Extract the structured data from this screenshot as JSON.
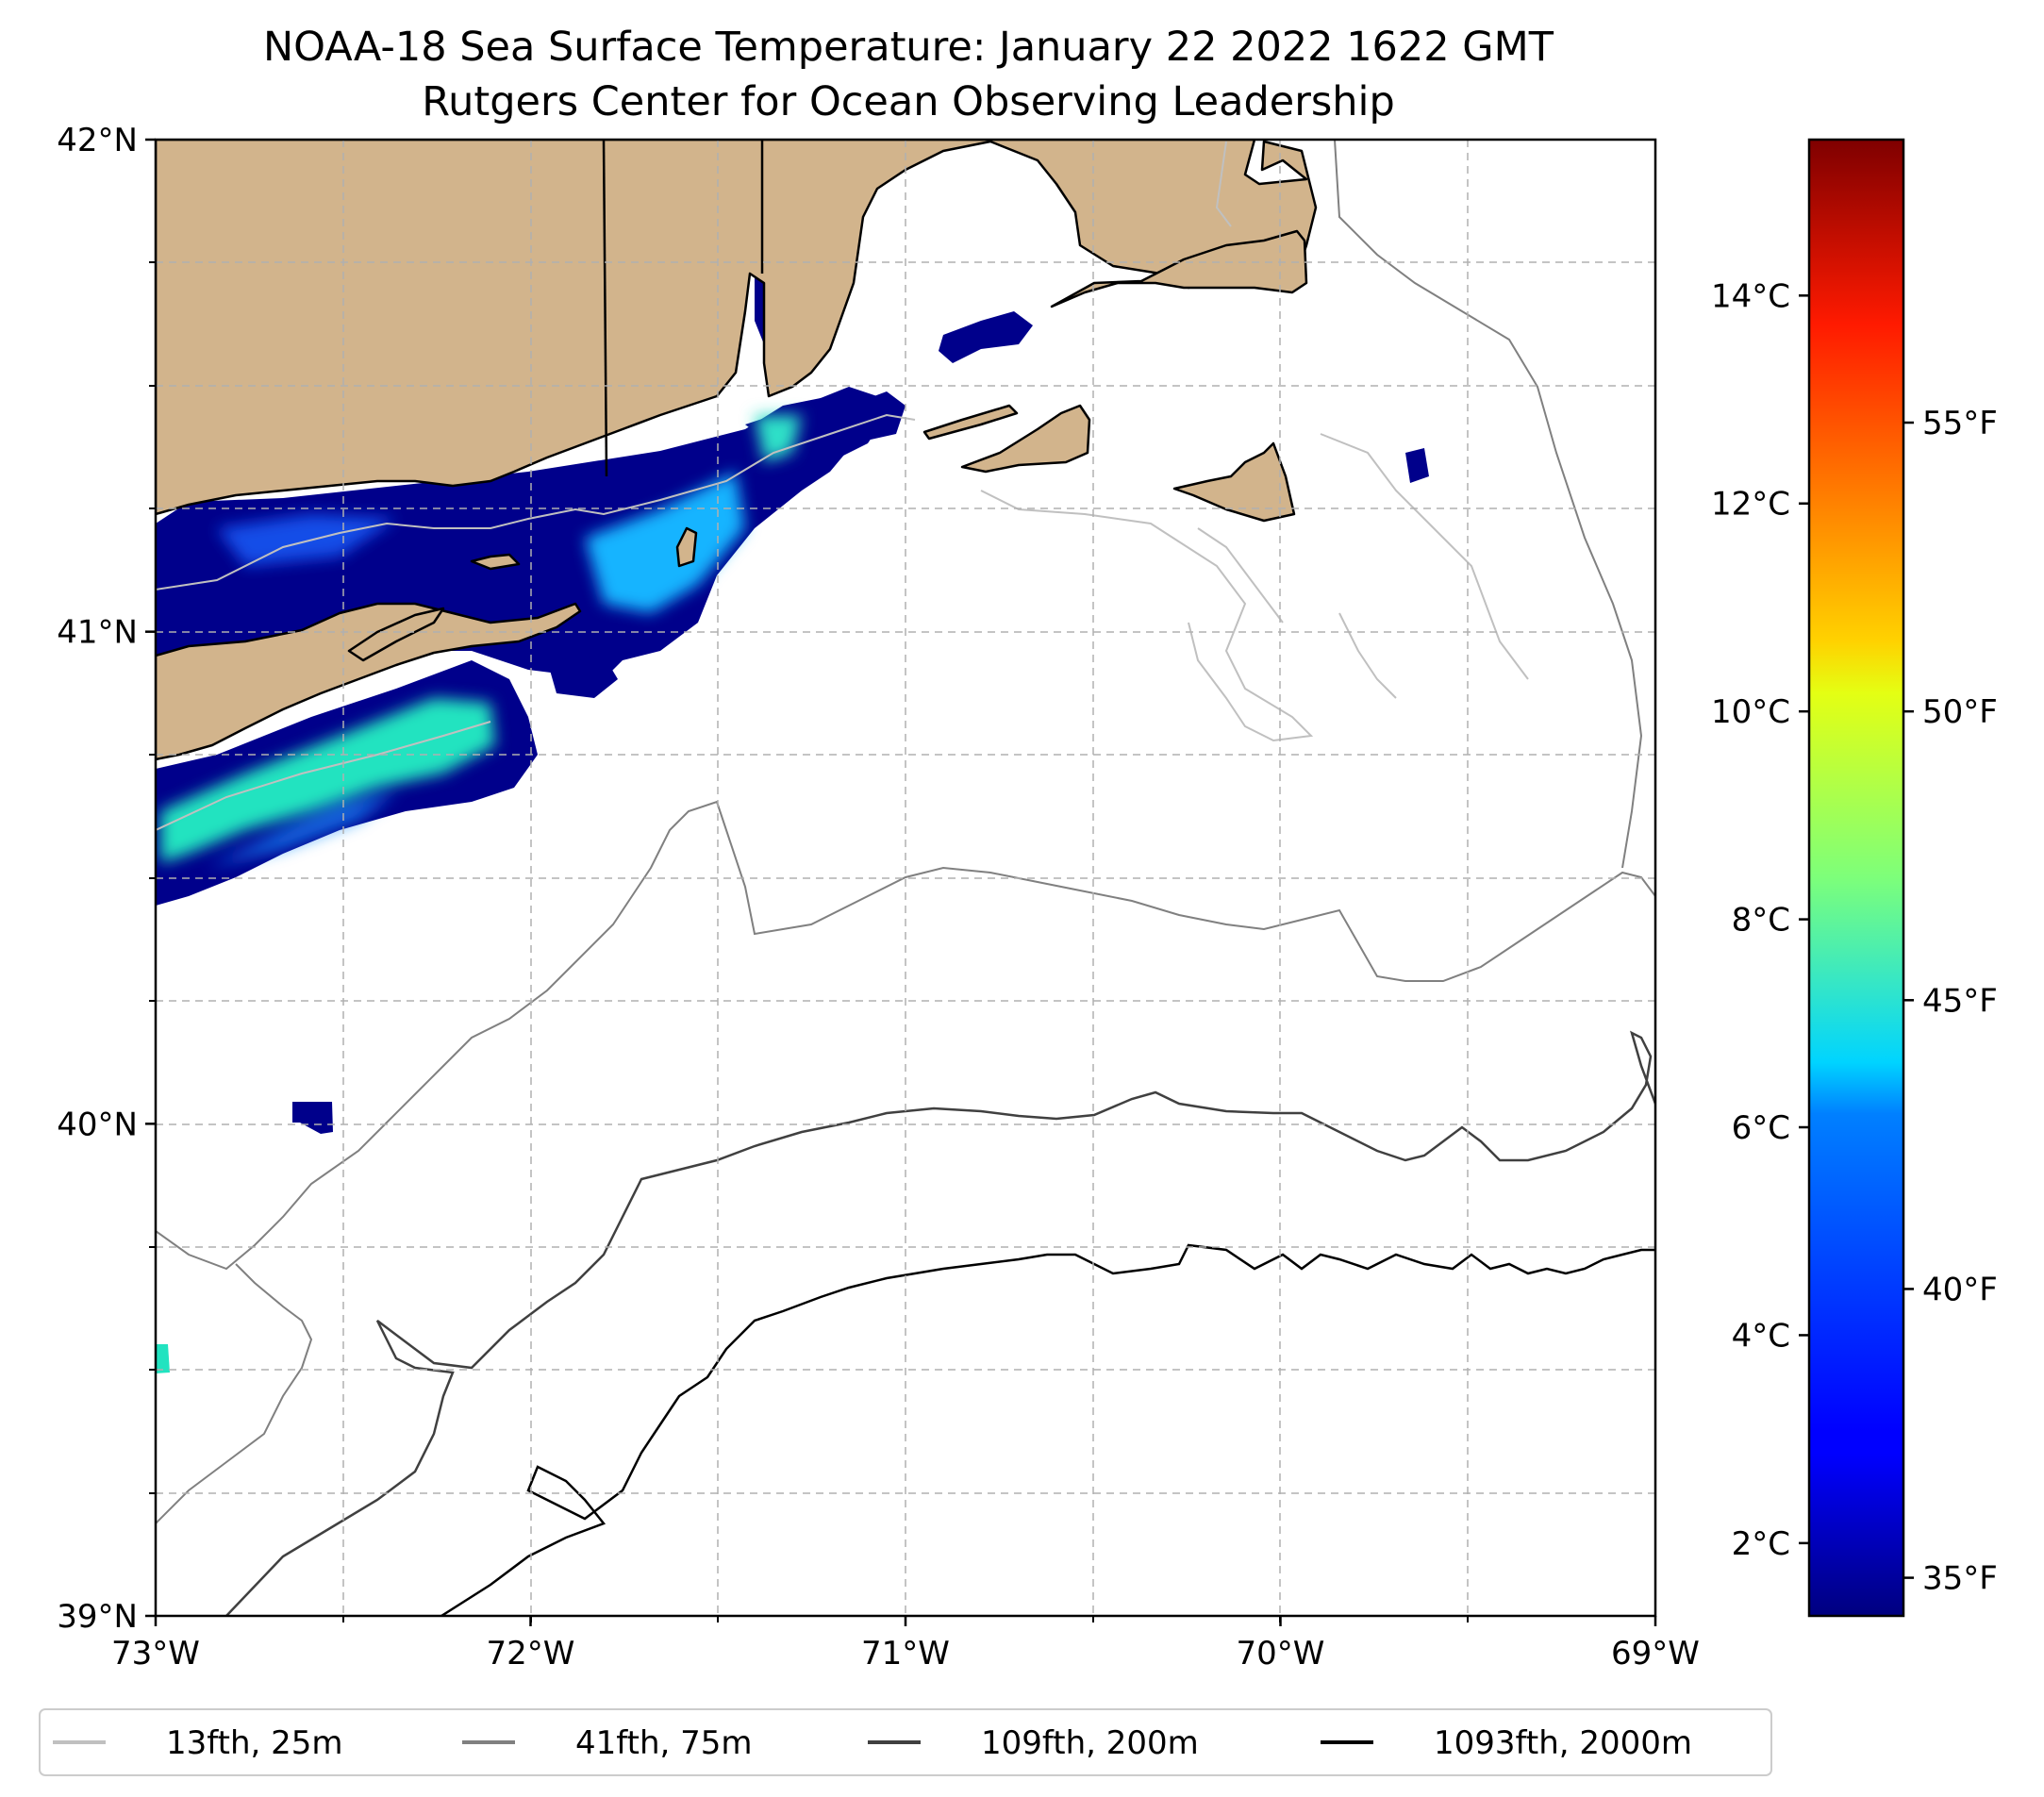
{
  "map": {
    "title": "NOAA-18 Sea Surface Temperature: January 22 2022 1622 GMT",
    "subtitle": "Rutgers Center for Ocean Observing Leadership",
    "extent": {
      "lon_min": -73,
      "lon_max": -69,
      "lat_min": 39,
      "lat_max": 42
    },
    "lat_ticks": [
      {
        "value": 42,
        "label": "42°N"
      },
      {
        "value": 41,
        "label": "41°N"
      },
      {
        "value": 40,
        "label": "40°N"
      },
      {
        "value": 39,
        "label": "39°N"
      }
    ],
    "lon_ticks": [
      {
        "value": -73,
        "label": "73°W"
      },
      {
        "value": -72,
        "label": "72°W"
      },
      {
        "value": -71,
        "label": "71°W"
      },
      {
        "value": -70,
        "label": "70°W"
      },
      {
        "value": -69,
        "label": "69°W"
      }
    ],
    "colors": {
      "land": "#d2b48c",
      "coast": "#000000",
      "grid": "#b0b0b0"
    }
  },
  "colorbar": {
    "colormap": "jet",
    "range_c": [
      1.3,
      15.5
    ],
    "celsius_ticks": [
      {
        "value": 2,
        "label": "2°C"
      },
      {
        "value": 4,
        "label": "4°C"
      },
      {
        "value": 6,
        "label": "6°C"
      },
      {
        "value": 8,
        "label": "8°C"
      },
      {
        "value": 10,
        "label": "10°C"
      },
      {
        "value": 12,
        "label": "12°C"
      },
      {
        "value": 14,
        "label": "14°C"
      }
    ],
    "fahrenheit_ticks": [
      {
        "value": 35,
        "label": "35°F"
      },
      {
        "value": 40,
        "label": "40°F"
      },
      {
        "value": 45,
        "label": "45°F"
      },
      {
        "value": 50,
        "label": "50°F"
      },
      {
        "value": 55,
        "label": "55°F"
      }
    ]
  },
  "legend": {
    "items": [
      {
        "label": "13fth, 25m",
        "color": "#c0c0c0"
      },
      {
        "label": "41fth, 75m",
        "color": "#808080"
      },
      {
        "label": "109fth, 200m",
        "color": "#404040"
      },
      {
        "label": "1093fth, 2000m",
        "color": "#000000"
      }
    ]
  }
}
